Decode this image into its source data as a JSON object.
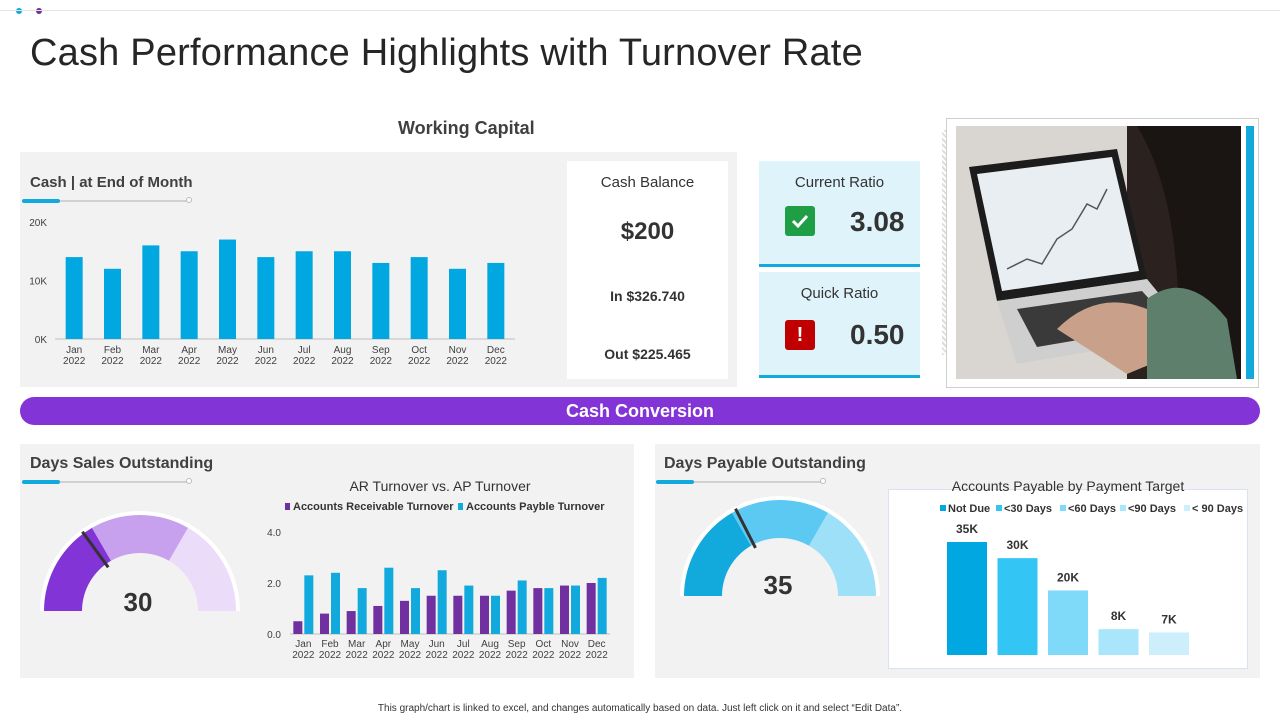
{
  "page": {
    "title": "Cash Performance Highlights with Turnover Rate",
    "footer_note": "This graph/chart is linked to excel, and changes automatically based on data. Just left click on it and select “Edit Data”."
  },
  "colors": {
    "accent_blue": "#12a9dd",
    "accent_purple": "#8234d6",
    "dark_purple": "#7030a0",
    "green": "#1e9e45",
    "red": "#c00000"
  },
  "working_capital": {
    "heading": "Working Capital",
    "cash_chart_title": "Cash | at End of Month",
    "cash_balance": {
      "label": "Cash Balance",
      "value": "$200",
      "in_text": "In $326.740",
      "out_text": "Out $225.465"
    },
    "current_ratio": {
      "label": "Current Ratio",
      "value": "3.08",
      "icon": "check-icon"
    },
    "quick_ratio": {
      "label": "Quick Ratio",
      "value": "0.50",
      "icon": "exclamation-icon"
    }
  },
  "cash_conversion": {
    "banner": "Cash Conversion",
    "dso": {
      "title": "Days Sales Outstanding",
      "gauge_value": "30",
      "level": 30,
      "max": 100
    },
    "dpo": {
      "title": "Days Payable Outstanding",
      "gauge_value": "35",
      "level": 35,
      "max": 100
    }
  },
  "chart_data": [
    {
      "type": "bar",
      "title": "",
      "categories": [
        "Jan|2022",
        "Feb|2022",
        "Mar|2022",
        "Apr|2022",
        "May|2022",
        "Jun|2022",
        "Jul|2022",
        "Aug|2022",
        "Sep|2022",
        "Oct|2022",
        "Nov|2022",
        "Dec|2022"
      ],
      "values": [
        14000,
        12000,
        16000,
        15000,
        17000,
        14000,
        15000,
        15000,
        13000,
        14000,
        12000,
        13000
      ],
      "ytick_labels": [
        "20K",
        "10K",
        "0K"
      ],
      "ylim": [
        0,
        20000
      ],
      "grid": false
    },
    {
      "type": "bar",
      "title": "AR Turnover vs. AP Turnover",
      "categories": [
        "Jan|2022",
        "Feb|2022",
        "Mar|2022",
        "Apr|2022",
        "May|2022",
        "Jun|2022",
        "Jul|2022",
        "Aug|2022",
        "Sep|2022",
        "Oct|2022",
        "Nov|2022",
        "Dec|2022"
      ],
      "series": [
        {
          "name": "Accounts Receivable Turnover",
          "values": [
            0.5,
            0.8,
            0.9,
            1.1,
            1.3,
            1.5,
            1.5,
            1.5,
            1.7,
            1.8,
            1.9,
            2.0
          ]
        },
        {
          "name": "Accounts Payble Turnover",
          "values": [
            2.3,
            2.4,
            1.8,
            2.6,
            1.8,
            2.5,
            1.9,
            1.5,
            2.1,
            1.8,
            1.9,
            2.2
          ]
        }
      ],
      "ytick_labels": [
        "4.0",
        "2.0",
        "0.0"
      ],
      "ylim": [
        0,
        4
      ],
      "legend": "top"
    },
    {
      "type": "bar",
      "title": "Accounts Payable by Payment Target",
      "categories": [
        "Not Due",
        "<30 Days",
        "<60 Days",
        "<90 Days",
        "< 90 Days"
      ],
      "values": [
        35000,
        30000,
        20000,
        8000,
        7000
      ],
      "data_labels": [
        "35K",
        "30K",
        "20K",
        "8K",
        "7K"
      ],
      "legend": "top"
    }
  ]
}
